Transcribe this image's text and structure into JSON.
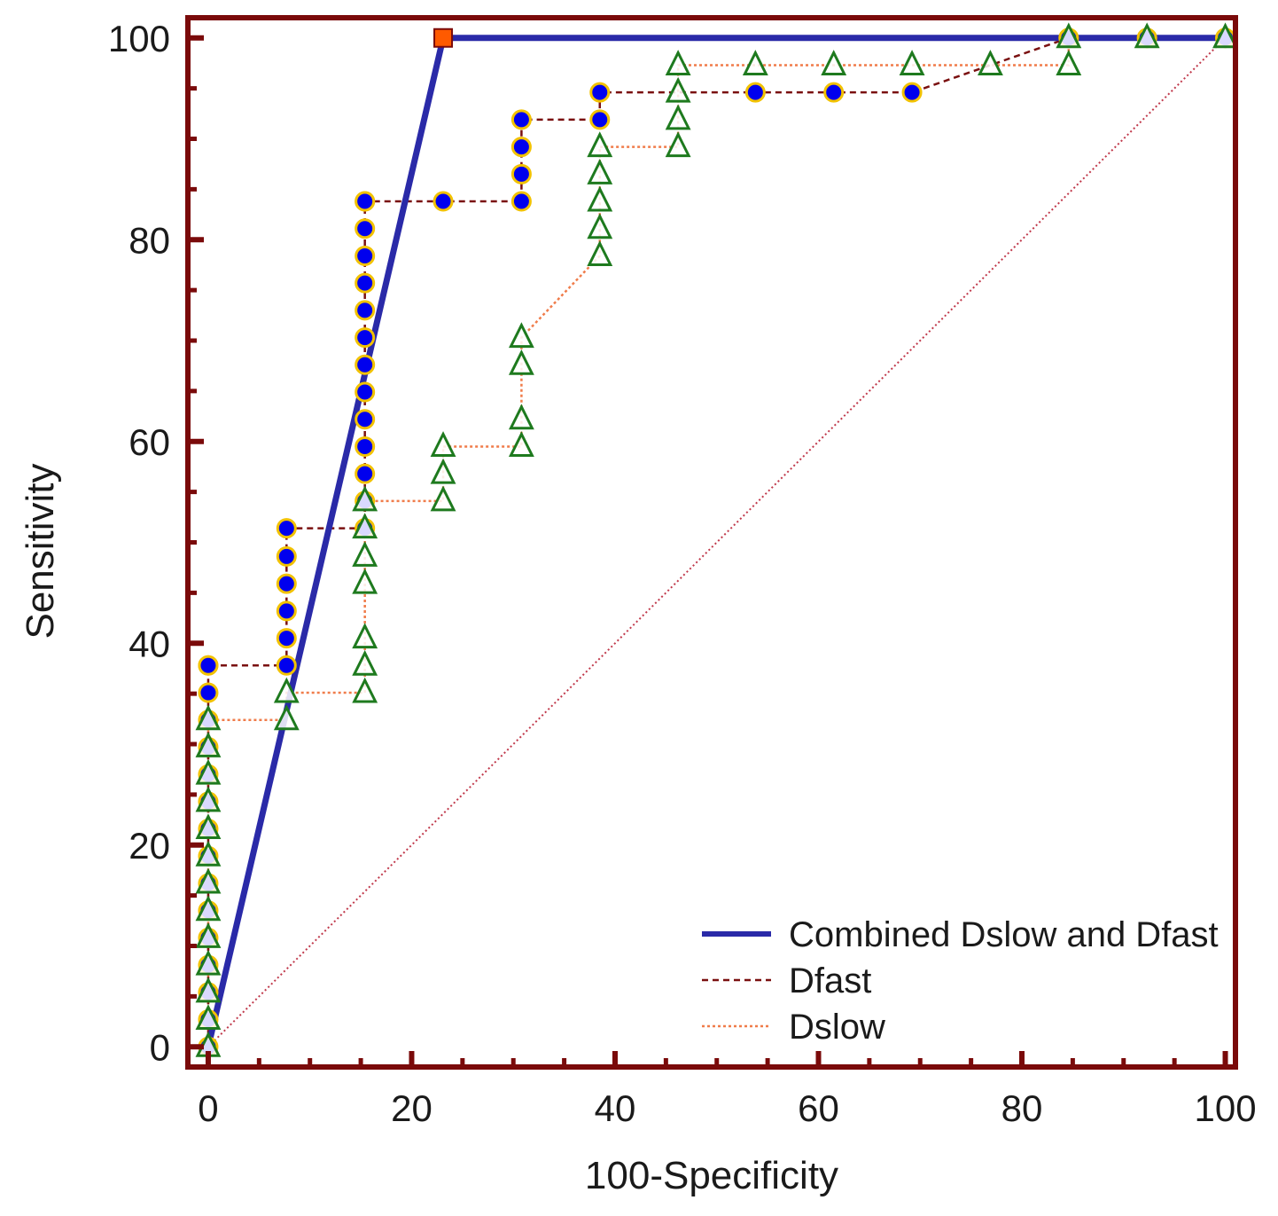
{
  "chart_data": {
    "type": "line",
    "title": "",
    "xlabel": "100-Specificity",
    "ylabel": "Sensitivity",
    "xlim": [
      -2,
      101
    ],
    "ylim": [
      -2,
      102
    ],
    "x_ticks": [
      0,
      20,
      40,
      60,
      80,
      100
    ],
    "y_ticks": [
      0,
      20,
      40,
      60,
      80,
      100
    ],
    "x_tick_labels": [
      "0",
      "20",
      "40",
      "60",
      "80",
      "100"
    ],
    "y_tick_labels": [
      "0",
      "20",
      "40",
      "60",
      "80",
      "100"
    ],
    "grid": false,
    "legend_position": "bottom-right",
    "colors": {
      "frame": "#7a0a0a",
      "combined": "#2a2aa8",
      "dfast_line": "#7a1010",
      "dfast_marker": "#0000ee",
      "dfast_marker_edge": "#f2c200",
      "dslow_line": "#f07c4a",
      "dslow_marker": "#1e7a1e",
      "combined_marker": "#ff5a00",
      "diagonal": "#c0394b"
    },
    "series": [
      {
        "name": "Combined Dslow and Dfast",
        "style": "solid",
        "marker": "square",
        "x": [
          0,
          23.1,
          100
        ],
        "y": [
          0,
          100,
          100
        ],
        "marker_x": [
          23.1
        ],
        "marker_y": [
          100
        ]
      },
      {
        "name": "Dfast",
        "style": "dashed",
        "marker": "circle",
        "x": [
          0,
          0,
          0,
          0,
          0,
          0,
          0,
          0,
          0,
          0,
          0,
          0,
          0,
          0,
          0,
          0,
          7.7,
          7.7,
          7.7,
          7.7,
          7.7,
          7.7,
          15.4,
          15.4,
          15.4,
          15.4,
          15.4,
          15.4,
          15.4,
          15.4,
          15.4,
          15.4,
          15.4,
          15.4,
          15.4,
          15.4,
          23.1,
          30.8,
          30.8,
          30.8,
          30.8,
          38.5,
          38.5,
          53.8,
          61.5,
          69.2,
          84.6,
          92.3,
          100
        ],
        "y": [
          0,
          2.7,
          5.4,
          8.1,
          10.8,
          13.5,
          16.2,
          18.9,
          21.6,
          24.3,
          27.0,
          29.7,
          32.4,
          35.1,
          37.8,
          37.8,
          37.8,
          40.5,
          43.2,
          45.9,
          48.6,
          51.4,
          51.4,
          54.1,
          56.8,
          59.5,
          62.2,
          64.9,
          67.6,
          70.3,
          73.0,
          75.7,
          78.4,
          81.1,
          83.8,
          83.8,
          83.8,
          83.8,
          86.5,
          89.2,
          91.9,
          91.9,
          94.6,
          94.6,
          94.6,
          94.6,
          100,
          100,
          100
        ]
      },
      {
        "name": "Dslow",
        "style": "dotted",
        "marker": "triangle",
        "x": [
          0,
          0,
          0,
          0,
          0,
          0,
          0,
          0,
          0,
          0,
          0,
          0,
          0,
          7.7,
          7.7,
          15.4,
          15.4,
          15.4,
          15.4,
          15.4,
          15.4,
          15.4,
          23.1,
          23.1,
          23.1,
          30.8,
          30.8,
          30.8,
          30.8,
          38.5,
          38.5,
          38.5,
          38.5,
          38.5,
          46.2,
          46.2,
          46.2,
          46.2,
          53.8,
          61.5,
          69.2,
          76.9,
          84.6,
          84.6,
          92.3,
          100
        ],
        "y": [
          0,
          2.7,
          5.4,
          8.1,
          10.8,
          13.5,
          16.2,
          18.9,
          21.6,
          24.3,
          27.0,
          29.7,
          32.4,
          32.4,
          35.1,
          35.1,
          37.8,
          40.5,
          45.9,
          48.6,
          51.4,
          54.1,
          54.1,
          56.8,
          59.5,
          59.5,
          62.2,
          67.6,
          70.3,
          78.4,
          81.1,
          83.8,
          86.5,
          89.2,
          89.2,
          91.9,
          94.6,
          97.3,
          97.3,
          97.3,
          97.3,
          97.3,
          97.3,
          100,
          100,
          100
        ]
      }
    ],
    "reference_line": {
      "x": [
        0,
        100
      ],
      "y": [
        0,
        100
      ]
    }
  }
}
